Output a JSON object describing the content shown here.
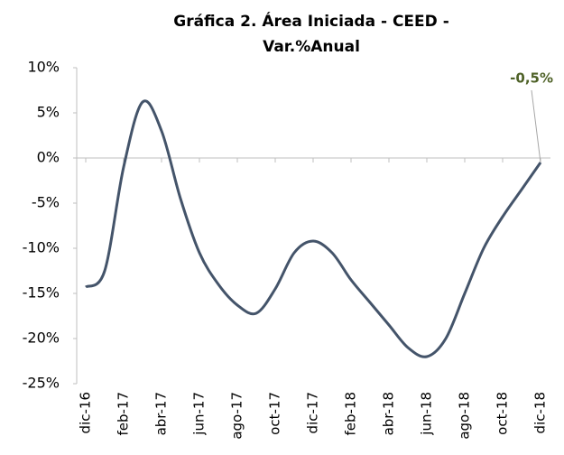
{
  "chart_data": {
    "type": "line",
    "title": [
      "Gráfica 2. Área Iniciada -  CEED -",
      "Var.%Anual"
    ],
    "categories": [
      "dic-16",
      null,
      "feb-17",
      null,
      "abr-17",
      null,
      "jun-17",
      null,
      "ago-17",
      null,
      "oct-17",
      null,
      "dic-17",
      null,
      "feb-18",
      null,
      "abr-18",
      null,
      "jun-18",
      null,
      "ago-18",
      null,
      "oct-18",
      null,
      "dic-18"
    ],
    "series": [
      {
        "color": "#44546a",
        "values": [
          -14.3,
          -12.5,
          -1,
          6.2,
          3.0,
          -4.5,
          -10.5,
          -14,
          -16.3,
          -17.2,
          -14.5,
          -10.5,
          -9.2,
          -10.5,
          -13.5,
          -16,
          -18.5,
          -21,
          -22,
          -20,
          -15,
          -10,
          -6.5,
          -3.5,
          -0.5
        ],
        "value_labels": [
          null,
          null,
          null,
          null,
          null,
          null,
          null,
          null,
          null,
          null,
          null,
          null,
          null,
          null,
          null,
          null,
          null,
          null,
          null,
          null,
          null,
          null,
          null,
          null,
          "-0,5%"
        ],
        "label_color": "#4f6228"
      }
    ],
    "ylim": [
      -25,
      10
    ],
    "yticks": [
      {
        "value": -25,
        "label": "-25%"
      },
      {
        "value": -20,
        "label": "-20%"
      },
      {
        "value": -15,
        "label": "-15%"
      },
      {
        "value": -10,
        "label": "-10%"
      },
      {
        "value": -5,
        "label": "-5%"
      },
      {
        "value": 0,
        "label": "0%"
      },
      {
        "value": 5,
        "label": "5%"
      },
      {
        "value": 10,
        "label": "10%"
      }
    ],
    "grid": false
  }
}
